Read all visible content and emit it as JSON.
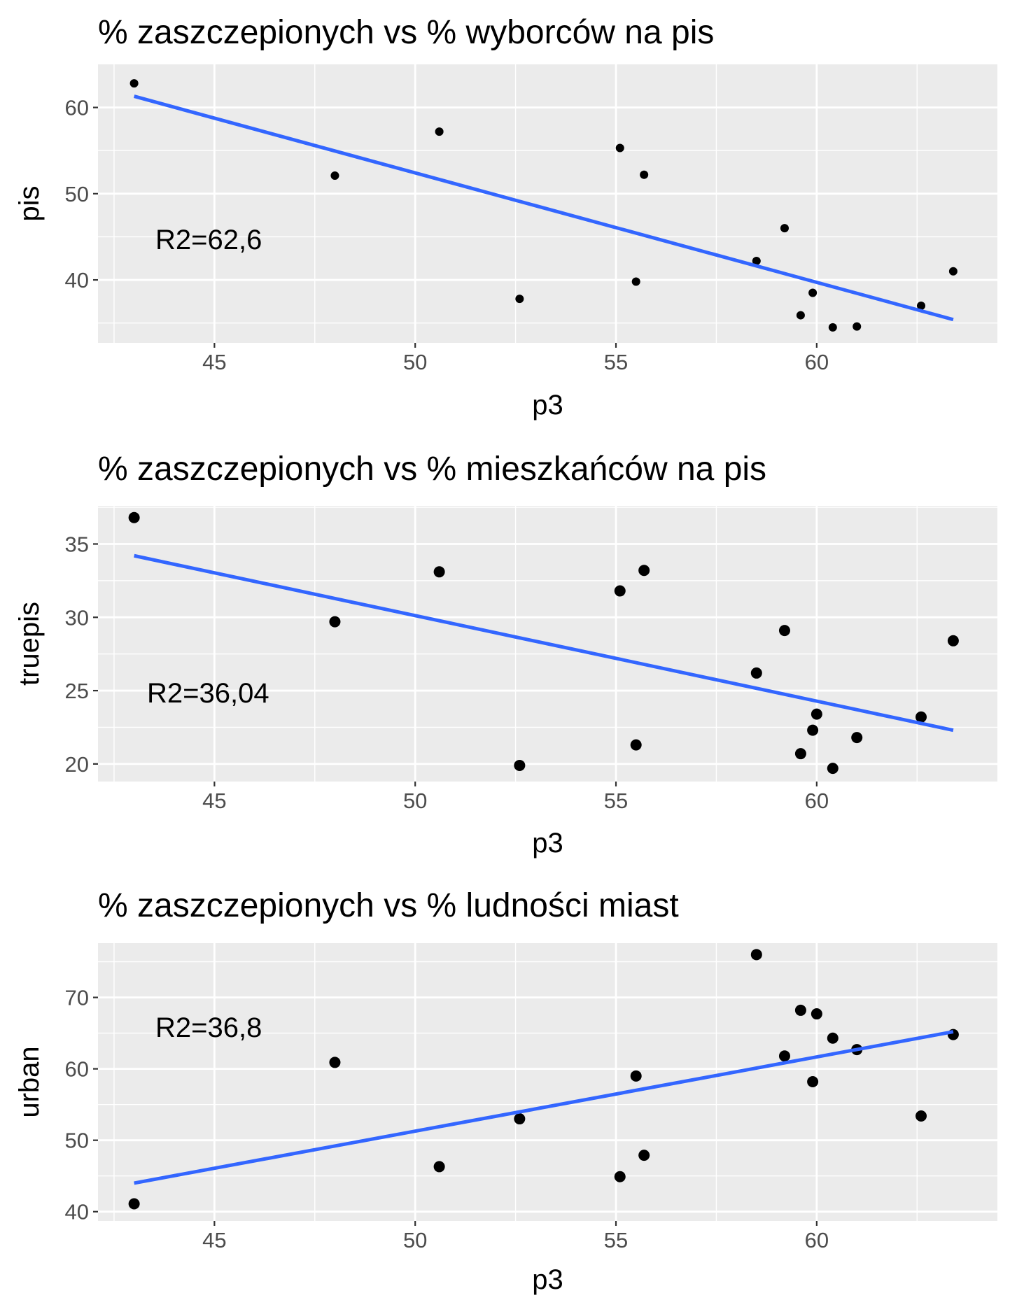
{
  "chart_data": [
    {
      "type": "scatter",
      "title": "% zaszczepionych vs % wyborców na pis",
      "xlabel": "p3",
      "ylabel": "pis",
      "xlim": [
        42.1,
        64.5
      ],
      "ylim": [
        32.7,
        65.0
      ],
      "x_ticks": [
        45,
        50,
        55,
        60
      ],
      "y_ticks": [
        40,
        50,
        60
      ],
      "annotation": "R2=62,6",
      "grid": true,
      "points": [
        {
          "x": 43.0,
          "y": 62.8
        },
        {
          "x": 48.0,
          "y": 52.1
        },
        {
          "x": 50.6,
          "y": 57.2
        },
        {
          "x": 52.6,
          "y": 37.8
        },
        {
          "x": 55.1,
          "y": 55.3
        },
        {
          "x": 55.5,
          "y": 39.8
        },
        {
          "x": 55.7,
          "y": 52.2
        },
        {
          "x": 58.5,
          "y": 42.2
        },
        {
          "x": 59.2,
          "y": 46.0
        },
        {
          "x": 59.6,
          "y": 35.9
        },
        {
          "x": 59.9,
          "y": 38.5
        },
        {
          "x": 60.4,
          "y": 34.5
        },
        {
          "x": 61.0,
          "y": 34.6
        },
        {
          "x": 62.6,
          "y": 37.0
        },
        {
          "x": 63.4,
          "y": 41.0
        }
      ],
      "fit_line": [
        {
          "x": 43.0,
          "y": 61.3
        },
        {
          "x": 63.4,
          "y": 35.4
        }
      ]
    },
    {
      "type": "scatter",
      "title": "% zaszczepionych vs % mieszkańców na pis",
      "xlabel": "p3",
      "ylabel": "truepis",
      "xlim": [
        42.1,
        64.5
      ],
      "ylim": [
        18.8,
        37.6
      ],
      "x_ticks": [
        45,
        50,
        55,
        60
      ],
      "y_ticks": [
        20,
        25,
        30,
        35
      ],
      "annotation": "R2=36,04",
      "grid": true,
      "points": [
        {
          "x": 43.0,
          "y": 36.8
        },
        {
          "x": 48.0,
          "y": 29.7
        },
        {
          "x": 50.6,
          "y": 33.1
        },
        {
          "x": 52.6,
          "y": 19.9
        },
        {
          "x": 55.1,
          "y": 31.8
        },
        {
          "x": 55.5,
          "y": 21.3
        },
        {
          "x": 55.7,
          "y": 33.2
        },
        {
          "x": 58.5,
          "y": 26.2
        },
        {
          "x": 59.2,
          "y": 29.1
        },
        {
          "x": 59.6,
          "y": 20.7
        },
        {
          "x": 59.9,
          "y": 22.3
        },
        {
          "x": 60.0,
          "y": 23.4
        },
        {
          "x": 60.4,
          "y": 19.7
        },
        {
          "x": 61.0,
          "y": 21.8
        },
        {
          "x": 62.6,
          "y": 23.2
        },
        {
          "x": 63.4,
          "y": 28.4
        }
      ],
      "fit_line": [
        {
          "x": 43.0,
          "y": 34.2
        },
        {
          "x": 63.4,
          "y": 22.3
        }
      ]
    },
    {
      "type": "scatter",
      "title": "% zaszczepionych vs % ludności miast",
      "xlabel": "p3",
      "ylabel": "urban",
      "xlim": [
        42.1,
        64.5
      ],
      "ylim": [
        38.7,
        77.6
      ],
      "x_ticks": [
        45,
        50,
        55,
        60
      ],
      "y_ticks": [
        40,
        50,
        60,
        70
      ],
      "annotation": "R2=36,8",
      "grid": true,
      "points": [
        {
          "x": 43.0,
          "y": 41.1
        },
        {
          "x": 48.0,
          "y": 60.9
        },
        {
          "x": 50.6,
          "y": 46.3
        },
        {
          "x": 52.6,
          "y": 53.0
        },
        {
          "x": 55.1,
          "y": 44.9
        },
        {
          "x": 55.5,
          "y": 59.0
        },
        {
          "x": 55.7,
          "y": 47.9
        },
        {
          "x": 58.5,
          "y": 76.0
        },
        {
          "x": 59.2,
          "y": 61.8
        },
        {
          "x": 59.6,
          "y": 68.2
        },
        {
          "x": 59.9,
          "y": 58.2
        },
        {
          "x": 60.0,
          "y": 67.7
        },
        {
          "x": 60.4,
          "y": 64.3
        },
        {
          "x": 61.0,
          "y": 62.7
        },
        {
          "x": 62.6,
          "y": 53.4
        },
        {
          "x": 63.4,
          "y": 64.8
        }
      ],
      "fit_line": [
        {
          "x": 43.0,
          "y": 44.0
        },
        {
          "x": 63.4,
          "y": 65.2
        }
      ]
    }
  ],
  "colors": {
    "panel_bg": "#EBEBEB",
    "grid": "#FFFFFF",
    "points": "#000000",
    "fit_line": "#3366FF",
    "tick_text": "#4D4D4D",
    "tick_marks": "#333333"
  }
}
